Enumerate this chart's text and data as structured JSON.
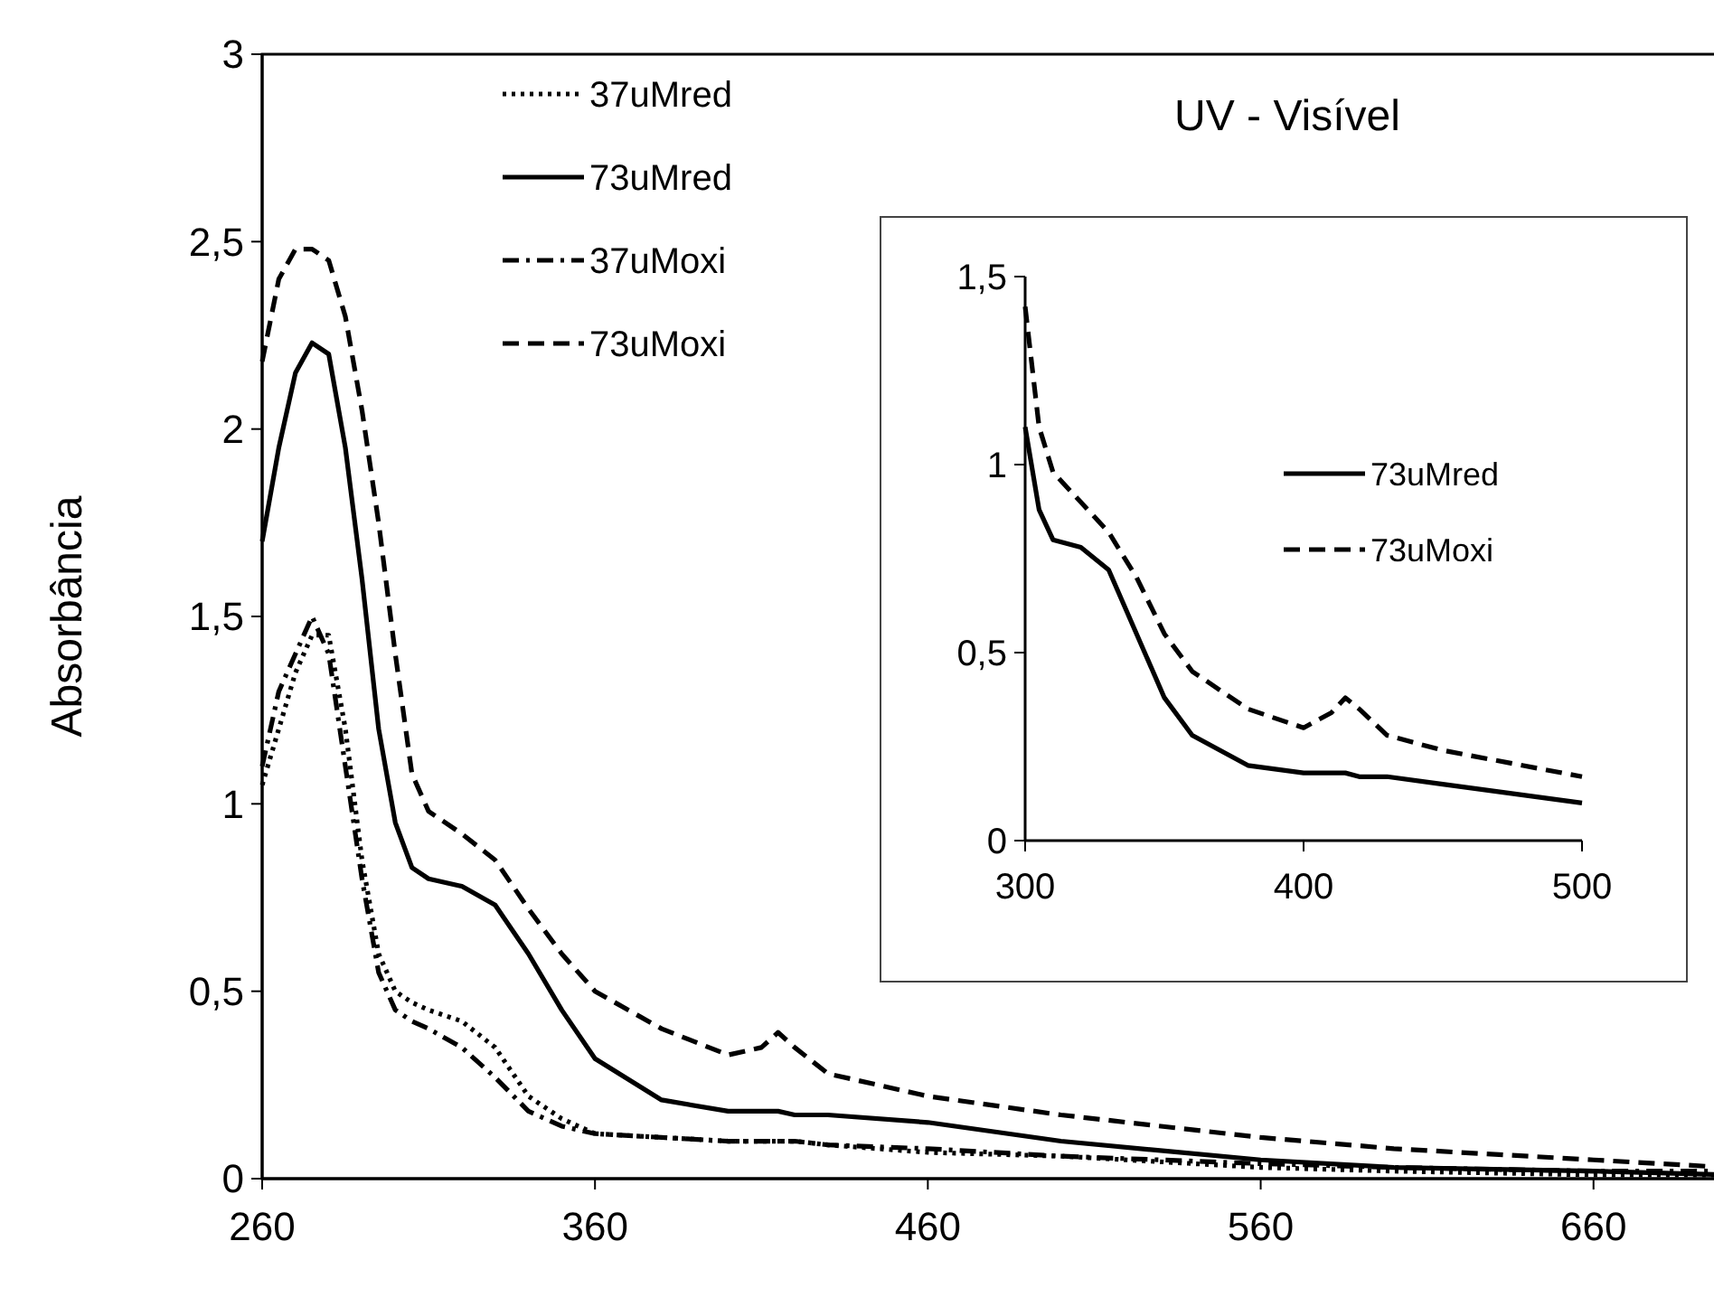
{
  "chart_data": [
    {
      "type": "line",
      "ylabel": "Absorbância",
      "annotations": [
        "UV - Visível"
      ],
      "xlim": [
        260,
        700
      ],
      "ylim": [
        0,
        3
      ],
      "xticks": [
        260,
        360,
        460,
        560,
        660
      ],
      "yticks": [
        0,
        {
          "value": 0.5,
          "label": "0,5"
        },
        1,
        {
          "value": 1.5,
          "label": "1,5"
        },
        2,
        {
          "value": 2.5,
          "label": "2,5"
        },
        3
      ],
      "grid": false,
      "legend": "top left",
      "x": [
        260,
        265,
        270,
        275,
        280,
        285,
        290,
        295,
        300,
        305,
        310,
        320,
        330,
        340,
        350,
        360,
        380,
        400,
        410,
        415,
        420,
        430,
        460,
        500,
        560,
        600,
        660,
        700
      ],
      "series": [
        {
          "name": "37uMred",
          "color": "#000000",
          "line_style": "dotted",
          "values": [
            1.05,
            1.2,
            1.35,
            1.45,
            1.45,
            1.2,
            0.85,
            0.6,
            0.5,
            0.47,
            0.45,
            0.42,
            0.35,
            0.22,
            0.16,
            0.12,
            0.11,
            0.1,
            0.1,
            0.1,
            0.1,
            0.09,
            0.07,
            0.06,
            0.03,
            0.02,
            0.01,
            0.01
          ]
        },
        {
          "name": "73uMred",
          "color": "#000000",
          "line_style": "solid",
          "values": [
            1.7,
            1.95,
            2.15,
            2.23,
            2.2,
            1.95,
            1.6,
            1.2,
            0.95,
            0.83,
            0.8,
            0.78,
            0.73,
            0.6,
            0.45,
            0.32,
            0.21,
            0.18,
            0.18,
            0.18,
            0.17,
            0.17,
            0.15,
            0.1,
            0.05,
            0.03,
            0.02,
            0.01
          ]
        },
        {
          "name": "37uMoxi",
          "color": "#000000",
          "line_style": "dashdot",
          "values": [
            1.1,
            1.3,
            1.4,
            1.5,
            1.4,
            1.1,
            0.8,
            0.55,
            0.45,
            0.42,
            0.4,
            0.35,
            0.27,
            0.18,
            0.14,
            0.12,
            0.11,
            0.1,
            0.1,
            0.1,
            0.1,
            0.09,
            0.08,
            0.06,
            0.04,
            0.03,
            0.02,
            0.02
          ]
        },
        {
          "name": "73uMoxi",
          "color": "#000000",
          "line_style": "dashed",
          "values": [
            2.18,
            2.4,
            2.48,
            2.48,
            2.45,
            2.3,
            2.05,
            1.75,
            1.4,
            1.08,
            0.98,
            0.92,
            0.85,
            0.72,
            0.6,
            0.5,
            0.4,
            0.33,
            0.35,
            0.39,
            0.35,
            0.28,
            0.22,
            0.17,
            0.11,
            0.08,
            0.05,
            0.03
          ]
        }
      ]
    },
    {
      "type": "line",
      "xlim": [
        300,
        500
      ],
      "ylim": [
        0,
        1.5
      ],
      "xticks": [
        300,
        400,
        500
      ],
      "yticks": [
        0,
        {
          "value": 0.5,
          "label": "0,5"
        },
        1,
        {
          "value": 1.5,
          "label": "1,5"
        }
      ],
      "grid": false,
      "legend": "right",
      "x": [
        300,
        305,
        310,
        320,
        330,
        340,
        350,
        360,
        380,
        400,
        410,
        415,
        420,
        430,
        450,
        500
      ],
      "series": [
        {
          "name": "73uMred",
          "color": "#000000",
          "line_style": "solid",
          "values": [
            1.1,
            0.88,
            0.8,
            0.78,
            0.72,
            0.55,
            0.38,
            0.28,
            0.2,
            0.18,
            0.18,
            0.18,
            0.17,
            0.17,
            0.15,
            0.1
          ]
        },
        {
          "name": "73uMoxi",
          "color": "#000000",
          "line_style": "dashed",
          "values": [
            1.42,
            1.1,
            0.98,
            0.9,
            0.82,
            0.7,
            0.55,
            0.45,
            0.35,
            0.3,
            0.34,
            0.38,
            0.35,
            0.28,
            0.24,
            0.17
          ]
        }
      ]
    }
  ]
}
